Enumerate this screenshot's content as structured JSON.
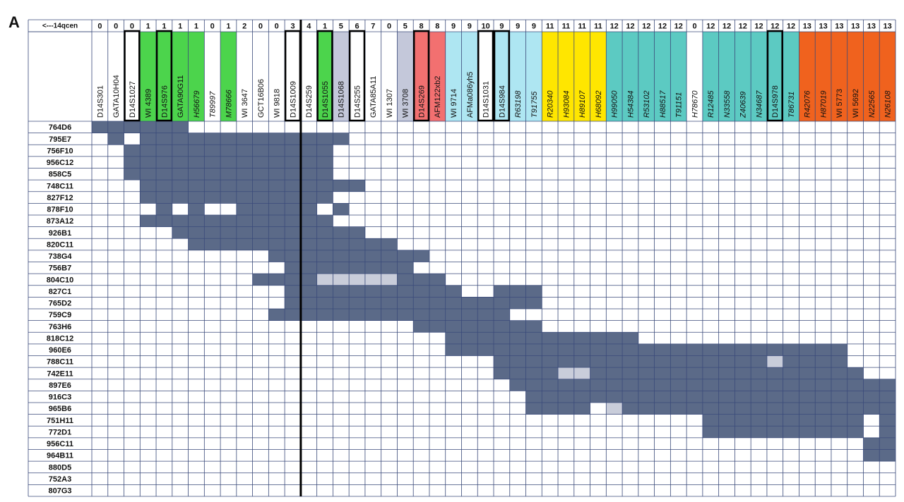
{
  "panel_label": "A",
  "header_label": "<---14qcen",
  "markers": [
    {
      "num": 0,
      "name": "D14S301",
      "color": "#ffffff",
      "boxed": false,
      "italic": false
    },
    {
      "num": 0,
      "name": "GATA10H04",
      "color": "#ffffff",
      "boxed": false,
      "italic": false
    },
    {
      "num": 0,
      "name": "D14S1027",
      "color": "#ffffff",
      "boxed": true,
      "italic": false
    },
    {
      "num": 1,
      "name": "WI 4389",
      "color": "#4cd44c",
      "boxed": false,
      "italic": false
    },
    {
      "num": 1,
      "name": "D14S976",
      "color": "#4cd44c",
      "boxed": true,
      "italic": false
    },
    {
      "num": 1,
      "name": "GATA90G11",
      "color": "#4cd44c",
      "boxed": false,
      "italic": false
    },
    {
      "num": 1,
      "name": "H56679",
      "color": "#4cd44c",
      "boxed": false,
      "italic": true
    },
    {
      "num": 0,
      "name": "T89997",
      "color": "#ffffff",
      "boxed": false,
      "italic": true
    },
    {
      "num": 1,
      "name": "M78666",
      "color": "#4cd44c",
      "boxed": false,
      "italic": true
    },
    {
      "num": 2,
      "name": "WI 3647",
      "color": "#ffffff",
      "boxed": false,
      "italic": false
    },
    {
      "num": 0,
      "name": "GCT16B06",
      "color": "#ffffff",
      "boxed": false,
      "italic": false
    },
    {
      "num": 0,
      "name": "WI 9818",
      "color": "#ffffff",
      "boxed": false,
      "italic": false
    },
    {
      "num": 3,
      "name": "D14S1009",
      "color": "#ffffff",
      "boxed": true,
      "italic": false
    },
    {
      "num": 4,
      "name": "D14S259",
      "color": "#ffffff",
      "boxed": false,
      "italic": false
    },
    {
      "num": 1,
      "name": "D14S1055",
      "color": "#4cd44c",
      "boxed": true,
      "italic": false
    },
    {
      "num": 5,
      "name": "D14S1068",
      "color": "#c4c8da",
      "boxed": false,
      "italic": false
    },
    {
      "num": 6,
      "name": "D14S255",
      "color": "#ffffff",
      "boxed": true,
      "italic": false
    },
    {
      "num": 7,
      "name": "GATA85A11",
      "color": "#ffffff",
      "boxed": false,
      "italic": false
    },
    {
      "num": 0,
      "name": "WI 1307",
      "color": "#ffffff",
      "boxed": false,
      "italic": false
    },
    {
      "num": 5,
      "name": "WI 3708",
      "color": "#c4c8da",
      "boxed": false,
      "italic": false
    },
    {
      "num": 8,
      "name": "D14S269",
      "color": "#f27070",
      "boxed": true,
      "italic": false
    },
    {
      "num": 8,
      "name": "AFM122xb2",
      "color": "#f27070",
      "boxed": false,
      "italic": false
    },
    {
      "num": 9,
      "name": "WI 9714",
      "color": "#aee6f2",
      "boxed": false,
      "italic": false
    },
    {
      "num": 9,
      "name": "AFMa086yh5",
      "color": "#aee6f2",
      "boxed": false,
      "italic": false
    },
    {
      "num": 10,
      "name": "D14S1031",
      "color": "#ffffff",
      "boxed": true,
      "italic": false
    },
    {
      "num": 9,
      "name": "D14S984",
      "color": "#aee6f2",
      "boxed": true,
      "italic": false
    },
    {
      "num": 9,
      "name": "R63198",
      "color": "#aee6f2",
      "boxed": false,
      "italic": true
    },
    {
      "num": 9,
      "name": "T91755",
      "color": "#aee6f2",
      "boxed": false,
      "italic": true
    },
    {
      "num": 11,
      "name": "R20340",
      "color": "#ffe600",
      "boxed": false,
      "italic": true
    },
    {
      "num": 11,
      "name": "H93084",
      "color": "#ffe600",
      "boxed": false,
      "italic": true
    },
    {
      "num": 11,
      "name": "H89107",
      "color": "#ffe600",
      "boxed": false,
      "italic": true
    },
    {
      "num": 11,
      "name": "H68092",
      "color": "#ffe600",
      "boxed": false,
      "italic": true
    },
    {
      "num": 12,
      "name": "H99050",
      "color": "#5ccac2",
      "boxed": false,
      "italic": true
    },
    {
      "num": 12,
      "name": "H54384",
      "color": "#5ccac2",
      "boxed": false,
      "italic": true
    },
    {
      "num": 12,
      "name": "R53102",
      "color": "#5ccac2",
      "boxed": false,
      "italic": true
    },
    {
      "num": 12,
      "name": "H88517",
      "color": "#5ccac2",
      "boxed": false,
      "italic": true
    },
    {
      "num": 12,
      "name": "T91151",
      "color": "#5ccac2",
      "boxed": false,
      "italic": true
    },
    {
      "num": 0,
      "name": "H78670",
      "color": "#ffffff",
      "boxed": false,
      "italic": true
    },
    {
      "num": 12,
      "name": "R12485",
      "color": "#5ccac2",
      "boxed": false,
      "italic": true
    },
    {
      "num": 12,
      "name": "N33558",
      "color": "#5ccac2",
      "boxed": false,
      "italic": true
    },
    {
      "num": 12,
      "name": "Z40639",
      "color": "#5ccac2",
      "boxed": false,
      "italic": true
    },
    {
      "num": 12,
      "name": "N34687",
      "color": "#5ccac2",
      "boxed": false,
      "italic": true
    },
    {
      "num": 12,
      "name": "D14S978",
      "color": "#5ccac2",
      "boxed": true,
      "italic": false
    },
    {
      "num": 12,
      "name": "T86731",
      "color": "#5ccac2",
      "boxed": false,
      "italic": true
    },
    {
      "num": 13,
      "name": "R42076",
      "color": "#f0621e",
      "boxed": false,
      "italic": true
    },
    {
      "num": 13,
      "name": "H87019",
      "color": "#f0621e",
      "boxed": false,
      "italic": true
    },
    {
      "num": 13,
      "name": "WI 5773",
      "color": "#f0621e",
      "boxed": false,
      "italic": false
    },
    {
      "num": 13,
      "name": "WI 5692",
      "color": "#f0621e",
      "boxed": false,
      "italic": false
    },
    {
      "num": 13,
      "name": "N22565",
      "color": "#f0621e",
      "boxed": false,
      "italic": true
    },
    {
      "num": 13,
      "name": "N26108",
      "color": "#f0621e",
      "boxed": false,
      "italic": true
    }
  ],
  "divider_after": 12,
  "rows": [
    {
      "label": "764D6",
      "dark": [
        [
          0,
          5
        ]
      ],
      "light": []
    },
    {
      "label": "795E7",
      "dark": [
        [
          1,
          1
        ],
        [
          3,
          15
        ]
      ],
      "light": []
    },
    {
      "label": "756F10",
      "dark": [
        [
          2,
          14
        ]
      ],
      "light": []
    },
    {
      "label": "956C12",
      "dark": [
        [
          2,
          14
        ]
      ],
      "light": []
    },
    {
      "label": "858C5",
      "dark": [
        [
          2,
          14
        ]
      ],
      "light": []
    },
    {
      "label": "748C11",
      "dark": [
        [
          3,
          16
        ]
      ],
      "light": []
    },
    {
      "label": "827F12",
      "dark": [
        [
          3,
          14
        ]
      ],
      "light": []
    },
    {
      "label": "878F10",
      "dark": [
        [
          4,
          4
        ],
        [
          6,
          6
        ],
        [
          9,
          13
        ],
        [
          15,
          15
        ]
      ],
      "light": []
    },
    {
      "label": "873A12",
      "dark": [
        [
          3,
          14
        ]
      ],
      "light": []
    },
    {
      "label": "926B1",
      "dark": [
        [
          5,
          16
        ]
      ],
      "light": []
    },
    {
      "label": "820C11",
      "dark": [
        [
          6,
          18
        ]
      ],
      "light": []
    },
    {
      "label": "738G4",
      "dark": [
        [
          11,
          20
        ]
      ],
      "light": []
    },
    {
      "label": "756B7",
      "dark": [
        [
          12,
          19
        ]
      ],
      "light": []
    },
    {
      "label": "804C10",
      "dark": [
        [
          10,
          13
        ],
        [
          19,
          21
        ]
      ],
      "light": [
        [
          14,
          18
        ]
      ]
    },
    {
      "label": "827C1",
      "dark": [
        [
          12,
          22
        ],
        [
          25,
          27
        ]
      ],
      "light": []
    },
    {
      "label": "765D2",
      "dark": [
        [
          12,
          27
        ]
      ],
      "light": []
    },
    {
      "label": "759C9",
      "dark": [
        [
          11,
          25
        ]
      ],
      "light": []
    },
    {
      "label": "763H6",
      "dark": [
        [
          20,
          27
        ]
      ],
      "light": []
    },
    {
      "label": "818C12",
      "dark": [
        [
          22,
          33
        ]
      ],
      "light": []
    },
    {
      "label": "960E6",
      "dark": [
        [
          22,
          46
        ]
      ],
      "light": []
    },
    {
      "label": "788C11",
      "dark": [
        [
          25,
          41
        ],
        [
          43,
          46
        ]
      ],
      "light": [
        [
          42,
          42
        ]
      ]
    },
    {
      "label": "742E11",
      "dark": [
        [
          25,
          28
        ],
        [
          31,
          47
        ]
      ],
      "light": [
        [
          29,
          30
        ]
      ]
    },
    {
      "label": "897E6",
      "dark": [
        [
          26,
          49
        ]
      ],
      "light": []
    },
    {
      "label": "916C3",
      "dark": [
        [
          27,
          49
        ]
      ],
      "light": []
    },
    {
      "label": "965B6",
      "dark": [
        [
          27,
          30
        ],
        [
          33,
          49
        ]
      ],
      "light": [
        [
          32,
          32
        ]
      ]
    },
    {
      "label": "751H11",
      "dark": [
        [
          38,
          47
        ],
        [
          49,
          49
        ]
      ],
      "light": []
    },
    {
      "label": "772D1",
      "dark": [
        [
          38,
          47
        ],
        [
          49,
          49
        ]
      ],
      "light": []
    },
    {
      "label": "956C11",
      "dark": [
        [
          48,
          49
        ]
      ],
      "light": []
    },
    {
      "label": "964B11",
      "dark": [
        [
          48,
          49
        ]
      ],
      "light": []
    },
    {
      "label": "880D5",
      "dark": [],
      "light": []
    },
    {
      "label": "752A3",
      "dark": [],
      "light": []
    },
    {
      "label": "807G3",
      "dark": [],
      "light": []
    }
  ],
  "dark_color": "#5b6a88",
  "light_color": "#c9cdda"
}
